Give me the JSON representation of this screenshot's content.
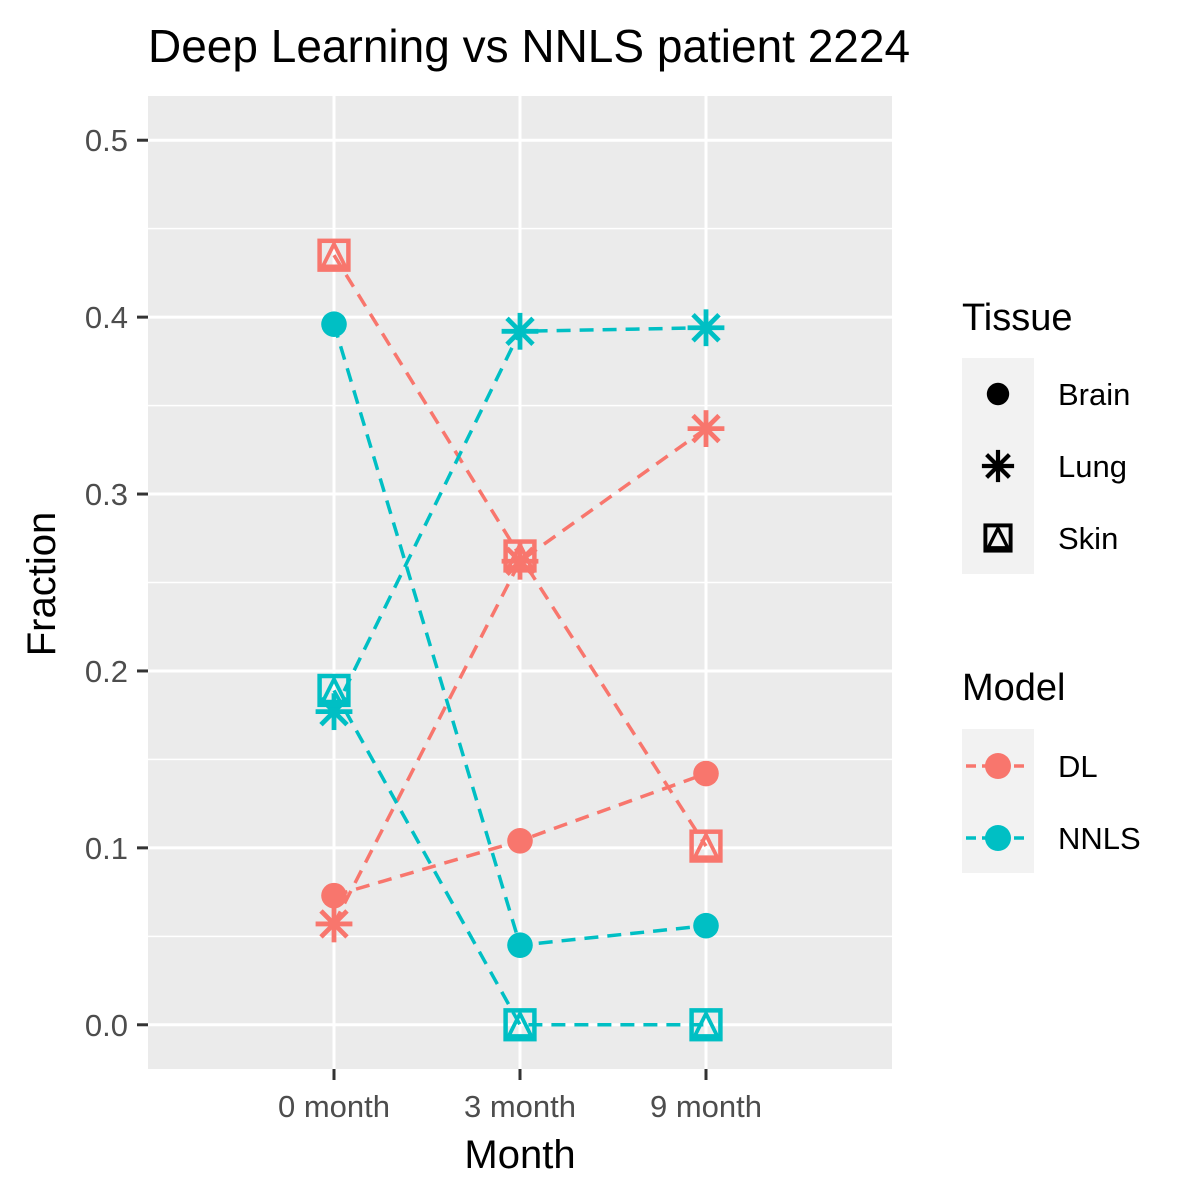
{
  "chart_data": {
    "type": "line",
    "title": "Deep Learning vs NNLS patient 2224",
    "xlabel": "Month",
    "ylabel": "Fraction",
    "categories": [
      "0 month",
      "3 month",
      "9 month"
    ],
    "ylim": [
      -0.025,
      0.525
    ],
    "yticks": [
      0.0,
      0.1,
      0.2,
      0.3,
      0.4,
      0.5
    ],
    "ytick_labels": [
      "0.0",
      "0.1",
      "0.2",
      "0.3",
      "0.4",
      "0.5"
    ],
    "grid": true,
    "background": "#ebebeb",
    "line_style": "dashed",
    "colors": {
      "DL": "#f8766d",
      "NNLS": "#00bfc4"
    },
    "legend": {
      "placement": "right",
      "tissue_title": "Tissue",
      "tissue_items": [
        "Brain",
        "Lung",
        "Skin"
      ],
      "model_title": "Model",
      "model_items": [
        "DL",
        "NNLS"
      ]
    },
    "series": [
      {
        "model": "DL",
        "tissue": "Brain",
        "shape": "circle",
        "values": [
          0.073,
          0.104,
          0.142
        ]
      },
      {
        "model": "DL",
        "tissue": "Lung",
        "shape": "asterisk",
        "values": [
          0.057,
          0.262,
          0.337
        ]
      },
      {
        "model": "DL",
        "tissue": "Skin",
        "shape": "square-triangle",
        "values": [
          0.435,
          0.265,
          0.101
        ]
      },
      {
        "model": "NNLS",
        "tissue": "Brain",
        "shape": "circle",
        "values": [
          0.396,
          0.045,
          0.056
        ]
      },
      {
        "model": "NNLS",
        "tissue": "Lung",
        "shape": "asterisk",
        "values": [
          0.177,
          0.392,
          0.394
        ]
      },
      {
        "model": "NNLS",
        "tissue": "Skin",
        "shape": "square-triangle",
        "values": [
          0.189,
          0.0,
          0.0
        ]
      }
    ]
  }
}
